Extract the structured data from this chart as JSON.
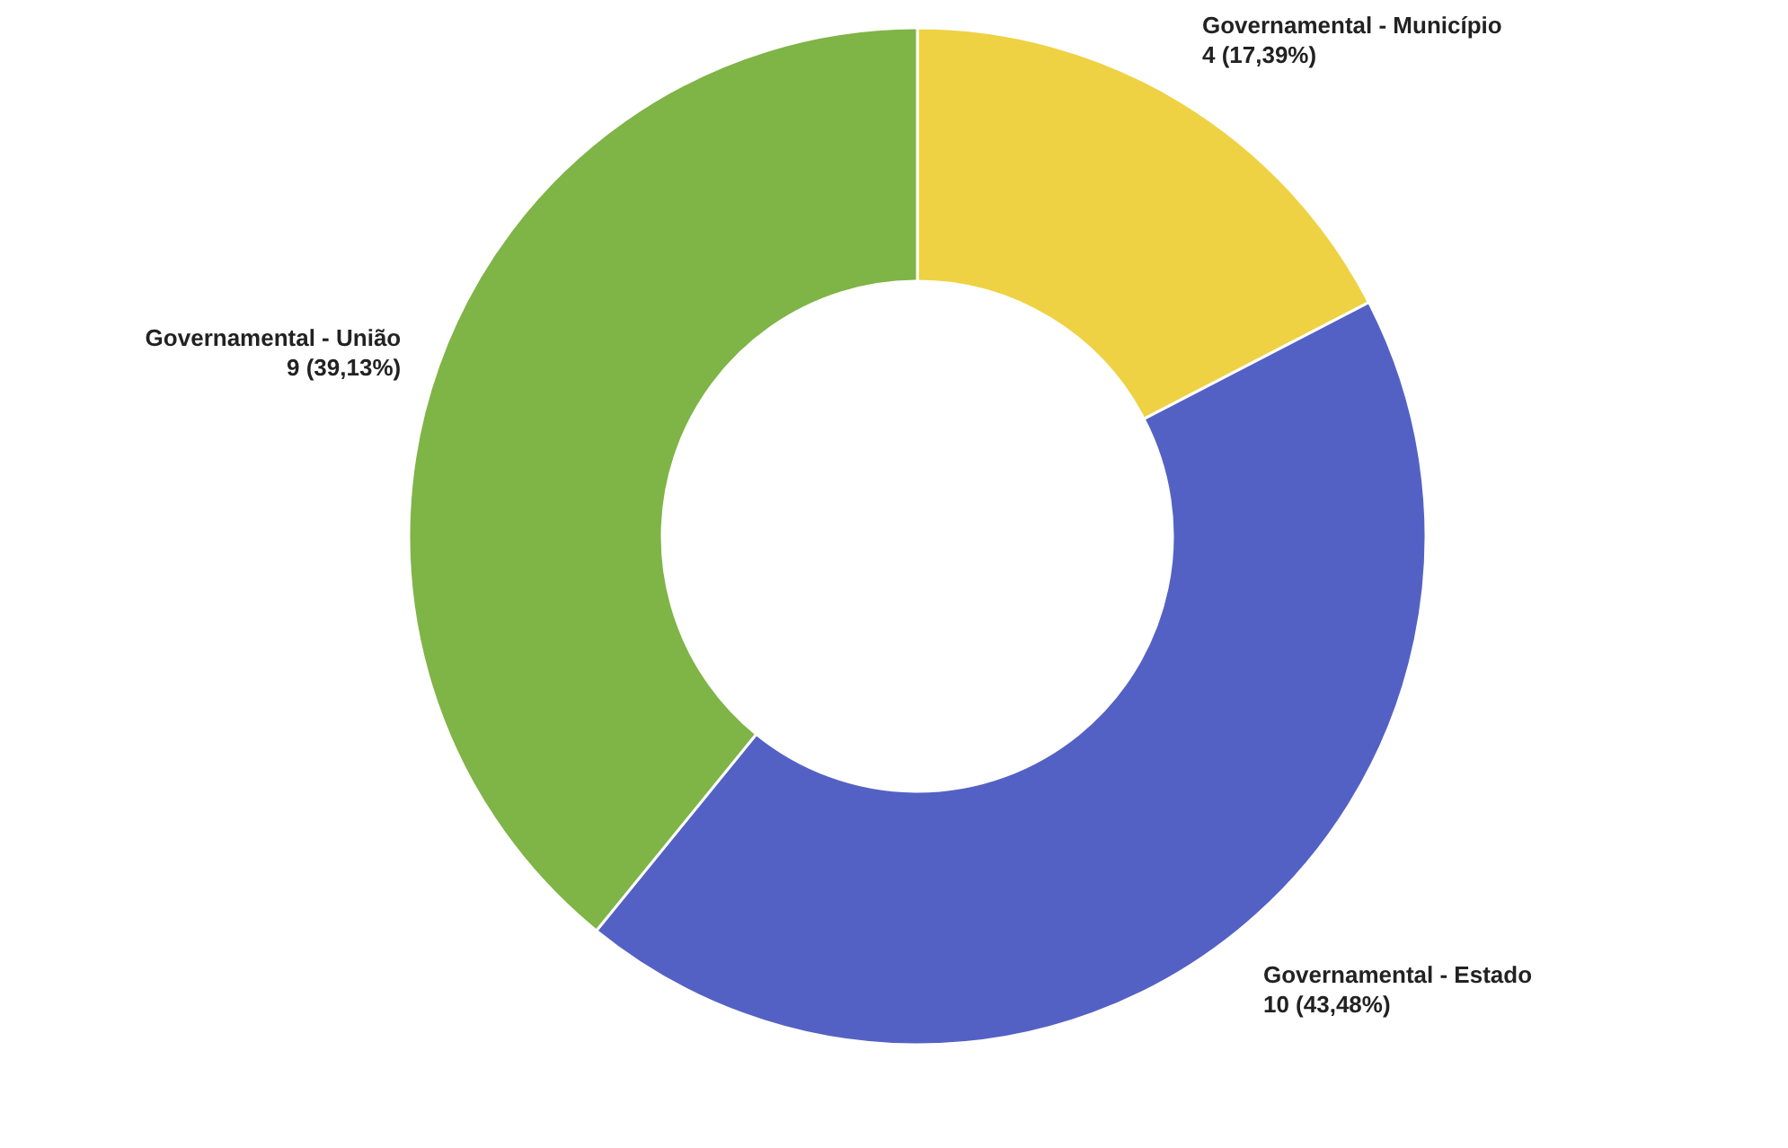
{
  "chart_data": {
    "type": "donut",
    "categories": [
      "Governamental - Município",
      "Governamental - Estado",
      "Governamental - União"
    ],
    "values": [
      4,
      10,
      9
    ],
    "colors": [
      "#eed244",
      "#5461c4",
      "#7fb447"
    ],
    "value_labels": [
      "4 (17,39%)",
      "10 (43,48%)",
      "9 (39,13%)"
    ]
  }
}
